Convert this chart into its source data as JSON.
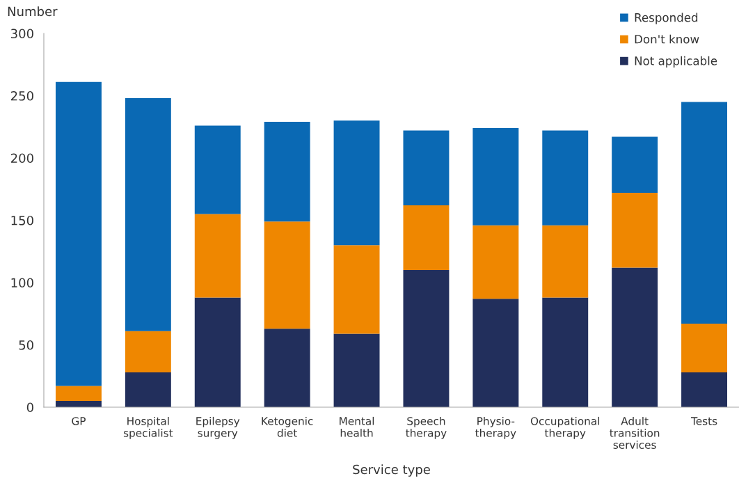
{
  "chart_data": {
    "type": "bar",
    "stacked": true,
    "xlabel": "Service type",
    "ylabel": "Number",
    "categories": [
      "GP",
      "Hospital\nspecialist",
      "Epilepsy\nsurgery",
      "Ketogenic\ndiet",
      "Mental\nhealth",
      "Speech\ntherapy",
      "Physio-\ntherapy",
      "Occupational\ntherapy",
      "Adult\ntransition\nservices",
      "Tests"
    ],
    "series": [
      {
        "name": "Not applicable",
        "color": "#222f5c",
        "values": [
          5,
          28,
          88,
          63,
          59,
          110,
          87,
          88,
          112,
          28
        ]
      },
      {
        "name": "Don't know",
        "color": "#ef8700",
        "values": [
          12,
          33,
          67,
          86,
          71,
          52,
          59,
          58,
          60,
          39
        ]
      },
      {
        "name": "Responded",
        "color": "#0a69b4",
        "values": [
          244,
          187,
          71,
          80,
          100,
          60,
          78,
          76,
          45,
          178
        ]
      }
    ],
    "ylim": [
      0,
      300
    ],
    "yticks": [
      0,
      50,
      100,
      150,
      200,
      250,
      300
    ],
    "grid": false,
    "legend": "top right"
  }
}
